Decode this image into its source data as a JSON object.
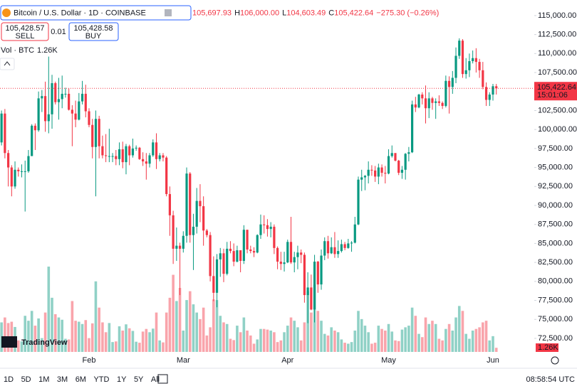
{
  "chart_data": {
    "type": "candlestick",
    "title": "Bitcoin / U.S. Dollar · 1D · COINBASE",
    "up_color": "#089981",
    "down_color": "#f23645",
    "ylim": [
      70250,
      117050
    ],
    "yticks": [
      {
        "value": 72500,
        "label": "72,500.00"
      },
      {
        "value": 75000,
        "label": "75,000.00"
      },
      {
        "value": 77500,
        "label": "77,500.00"
      },
      {
        "value": 80000,
        "label": "80,000.00"
      },
      {
        "value": 82500,
        "label": "82,500.00"
      },
      {
        "value": 85000,
        "label": "85,000.00"
      },
      {
        "value": 87500,
        "label": "87,500.00"
      },
      {
        "value": 90000,
        "label": "90,000.00"
      },
      {
        "value": 92500,
        "label": "92,500.00"
      },
      {
        "value": 95000,
        "label": "95,000.00"
      },
      {
        "value": 97500,
        "label": "97,500.00"
      },
      {
        "value": 100000,
        "label": "100,000.00"
      },
      {
        "value": 102500,
        "label": "102,500.00"
      },
      {
        "value": 105000,
        "label": "105,000.00"
      },
      {
        "value": 107500,
        "label": "107,500.00"
      },
      {
        "value": 110000,
        "label": "110,000.00"
      },
      {
        "value": 112500,
        "label": "112,500.00"
      },
      {
        "value": 115000,
        "label": "115,000.00"
      }
    ],
    "categories": [
      null,
      null,
      null,
      null,
      null,
      null,
      null,
      null,
      null,
      null,
      null,
      null,
      null,
      null,
      null,
      null,
      null,
      null,
      null,
      null,
      null,
      null,
      null,
      null,
      null,
      null,
      "Feb",
      null,
      null,
      null,
      null,
      null,
      null,
      null,
      null,
      null,
      null,
      null,
      null,
      null,
      null,
      null,
      null,
      null,
      null,
      null,
      null,
      null,
      null,
      null,
      null,
      null,
      null,
      null,
      "Mar",
      null,
      null,
      null,
      null,
      null,
      null,
      null,
      null,
      null,
      null,
      null,
      null,
      null,
      null,
      null,
      null,
      null,
      null,
      null,
      null,
      null,
      null,
      null,
      null,
      null,
      null,
      null,
      null,
      null,
      null,
      "Apr",
      null,
      null,
      null,
      null,
      null,
      null,
      null,
      null,
      null,
      null,
      null,
      null,
      null,
      null,
      null,
      null,
      null,
      null,
      null,
      null,
      null,
      null,
      null,
      null,
      null,
      null,
      null,
      null,
      null,
      "May",
      null,
      null,
      null,
      null,
      null,
      null,
      null,
      null,
      null,
      null,
      null,
      null,
      null,
      null,
      null,
      null,
      null,
      null,
      null,
      null,
      null,
      null,
      null,
      null,
      null,
      null,
      null,
      null,
      null,
      null,
      "Jun",
      null
    ],
    "open": [
      98300,
      102100,
      96900,
      95000,
      92500,
      94700,
      94500,
      94500,
      94500,
      96500,
      100500,
      99900,
      104100,
      104400,
      101100,
      102000,
      106100,
      103600,
      104000,
      104700,
      104700,
      102600,
      102100,
      101300,
      103700,
      104700,
      102400,
      100600,
      97700,
      101400,
      97800,
      96600,
      96500,
      96500,
      96500,
      96100,
      97400,
      95700,
      97800,
      96600,
      97500,
      97600,
      96100,
      95800,
      95500,
      96600,
      98300,
      96100,
      96600,
      96300,
      91500,
      88700,
      84300,
      84700,
      84300,
      86000,
      94200,
      86100,
      87200,
      90600,
      89900,
      86700,
      86100,
      80700,
      78500,
      82900,
      83700,
      81000,
      84300,
      84000,
      82600,
      84100,
      82700,
      86800,
      84200,
      84000,
      83800,
      86100,
      87500,
      87400,
      86900,
      87200,
      84400,
      82600,
      82300,
      82500,
      85200,
      82500,
      83200,
      83800,
      83500,
      78200,
      79200,
      76300,
      82600,
      79600,
      83400,
      85300,
      83700,
      84500,
      83600,
      84000,
      84900,
      84400,
      85000,
      85100,
      87500,
      93400,
      93700,
      93900,
      94700,
      94600,
      93800,
      95000,
      94300,
      94200,
      96500,
      96900,
      95900,
      94300,
      94700,
      96800,
      97000,
      103300,
      102900,
      104600,
      104100,
      102800,
      104100,
      103500,
      103700,
      103500,
      103100,
      106400,
      105600,
      106800,
      109700,
      111700,
      107300,
      107800,
      109000,
      109400,
      108900,
      107800,
      105600,
      103900,
      104600,
      105697.93
    ],
    "high": [
      102500,
      102700,
      97300,
      95300,
      95800,
      95000,
      95400,
      95900,
      97300,
      100700,
      100800,
      105000,
      105200,
      106300,
      109600,
      107200,
      106300,
      106800,
      107100,
      105500,
      105400,
      103200,
      103800,
      104800,
      106400,
      105900,
      102800,
      101400,
      102500,
      101800,
      99200,
      99400,
      100100,
      96900,
      97300,
      98300,
      98400,
      98100,
      98000,
      98800,
      97900,
      97700,
      97000,
      96900,
      96900,
      98700,
      99500,
      96900,
      96900,
      96500,
      92500,
      89300,
      87100,
      85100,
      86600,
      95000,
      94400,
      88900,
      92300,
      92800,
      91200,
      86900,
      86500,
      83300,
      83600,
      84400,
      84300,
      85200,
      85300,
      85000,
      84700,
      84100,
      87400,
      86800,
      84700,
      84500,
      86200,
      88800,
      88700,
      88200,
      87800,
      87500,
      84600,
      83900,
      83900,
      85500,
      88500,
      83900,
      84700,
      84200,
      83800,
      81200,
      80900,
      83500,
      82700,
      84200,
      85800,
      86000,
      85800,
      86500,
      85400,
      85500,
      85200,
      85600,
      85300,
      88500,
      93800,
      94700,
      94000,
      95800,
      95300,
      95200,
      95500,
      95400,
      95200,
      97400,
      97900,
      96900,
      96000,
      95200,
      96900,
      97700,
      103800,
      104300,
      104700,
      104900,
      105800,
      104900,
      104300,
      104100,
      104500,
      103700,
      107100,
      107000,
      107700,
      110800,
      112000,
      111900,
      109400,
      110000,
      110400,
      110700,
      109300,
      108900,
      106200,
      104900,
      106000,
      106000
    ],
    "low": [
      97900,
      96200,
      92500,
      91200,
      92200,
      93800,
      93700,
      89200,
      94300,
      96500,
      97300,
      99700,
      102300,
      99700,
      99500,
      100100,
      103300,
      101300,
      102800,
      104200,
      102500,
      97800,
      100300,
      101200,
      103300,
      101600,
      100300,
      96200,
      91200,
      96200,
      96200,
      95700,
      95700,
      95700,
      95300,
      95300,
      94900,
      94100,
      95300,
      96300,
      97200,
      96000,
      95200,
      93400,
      95000,
      96400,
      94800,
      95800,
      95800,
      91200,
      86000,
      82300,
      82700,
      78200,
      83800,
      85100,
      85100,
      81500,
      86300,
      87800,
      84700,
      85800,
      80000,
      77400,
      76600,
      80600,
      79900,
      80800,
      83700,
      82000,
      82500,
      81200,
      82300,
      83700,
      83700,
      83200,
      83700,
      85600,
      86300,
      85900,
      85800,
      83600,
      81600,
      81500,
      81300,
      82400,
      82300,
      81200,
      81600,
      82400,
      77200,
      74500,
      76200,
      74600,
      78500,
      78900,
      82800,
      83000,
      83600,
      83100,
      83100,
      83800,
      84100,
      84300,
      83900,
      85000,
      87400,
      91900,
      92000,
      92900,
      93900,
      93100,
      92800,
      93800,
      92900,
      94100,
      96300,
      95800,
      94000,
      93500,
      93400,
      95800,
      96900,
      102300,
      102800,
      103300,
      100800,
      101500,
      102600,
      101400,
      103100,
      102700,
      102900,
      102100,
      104700,
      106100,
      109300,
      106800,
      106700,
      106900,
      108700,
      107500,
      106800,
      105300,
      103100,
      103100,
      103800,
      104603.49
    ],
    "close": [
      102100,
      96900,
      95000,
      92500,
      94700,
      94500,
      94500,
      94500,
      96500,
      100500,
      99900,
      104100,
      104400,
      101100,
      102000,
      106100,
      103600,
      104000,
      104700,
      104700,
      102600,
      102100,
      101300,
      103700,
      104700,
      102400,
      100600,
      97700,
      101400,
      97800,
      96600,
      96500,
      96500,
      96500,
      96100,
      97400,
      95700,
      97800,
      96600,
      97500,
      97600,
      96100,
      95800,
      95500,
      96600,
      98300,
      96100,
      96600,
      96300,
      91500,
      88700,
      84300,
      84700,
      84300,
      86000,
      94200,
      86100,
      87200,
      90600,
      89900,
      86700,
      86100,
      80700,
      78500,
      82900,
      83700,
      81000,
      84300,
      84000,
      82600,
      84100,
      82700,
      86800,
      84200,
      84000,
      83800,
      86100,
      87500,
      87400,
      86900,
      87200,
      84400,
      82600,
      82300,
      82500,
      85200,
      82500,
      83200,
      83800,
      83500,
      78200,
      79200,
      76300,
      82600,
      79600,
      83400,
      85300,
      83700,
      84500,
      83600,
      84000,
      84900,
      84400,
      85000,
      85100,
      87500,
      93400,
      93700,
      93900,
      94700,
      94600,
      93800,
      95000,
      94300,
      94200,
      96500,
      96900,
      95900,
      94300,
      94700,
      96800,
      97000,
      103300,
      102900,
      104600,
      104100,
      102800,
      104100,
      103500,
      103700,
      103500,
      103100,
      106400,
      105600,
      106800,
      109700,
      111700,
      107300,
      107800,
      109000,
      109400,
      108900,
      107800,
      105600,
      103900,
      104600,
      105697.93,
      105422.64
    ],
    "volume": [
      9000,
      10500,
      8800,
      9200,
      7600,
      3500,
      3200,
      11000,
      9500,
      12500,
      8000,
      10200,
      4200,
      12000,
      26000,
      16500,
      11500,
      10500,
      9800,
      4000,
      3800,
      15500,
      9500,
      9200,
      8500,
      9700,
      4200,
      8700,
      21500,
      13500,
      9000,
      6000,
      8800,
      3000,
      3200,
      7800,
      6500,
      8400,
      7200,
      6400,
      3100,
      2800,
      6200,
      7000,
      6000,
      7100,
      12000,
      3500,
      2900,
      12000,
      16500,
      23500,
      15500,
      19500,
      6500,
      15800,
      18500,
      14500,
      12000,
      10000,
      13500,
      5000,
      7500,
      16000,
      15800,
      11000,
      9000,
      8500,
      4000,
      3600,
      8000,
      6000,
      10500,
      6500,
      5000,
      2500,
      3800,
      7000,
      7000,
      6800,
      6500,
      6000,
      3000,
      3500,
      6000,
      8000,
      10500,
      9500,
      7500,
      3500,
      9000,
      18500,
      12000,
      20500,
      12500,
      9500,
      5500,
      5000,
      7500,
      6500,
      6000,
      3800,
      2800,
      2500,
      3000,
      6500,
      12500,
      10000,
      8000,
      6000,
      2500,
      2800,
      8000,
      7000,
      6500,
      8500,
      6200,
      3500,
      3300,
      6800,
      7500,
      8000,
      13500,
      11000,
      5500,
      4500,
      10500,
      8500,
      9500,
      8500,
      4000,
      3500,
      7000,
      8500,
      6500,
      10500,
      14000,
      12500,
      5500,
      4000,
      6500,
      7000,
      7500,
      9000,
      9500,
      3500,
      4800,
      1260
    ],
    "volume_name": "Vol · BTC",
    "volume_value_label": "1.26K",
    "header_values": [
      "105,697.93",
      "H",
      "106,000.00",
      "L",
      "104,603.49",
      "C",
      "105,422.64",
      "−275.30 (−0.26%)"
    ],
    "last_price_label": "105,422.64",
    "countdown": "15:01:06"
  },
  "trade_panel": {
    "sell_price": "105,428.57",
    "sell": "SELL",
    "spread": "0.01",
    "buy_price": "105,428.58",
    "buy": "BUY"
  },
  "logo": "TradingView",
  "toolbar": {
    "ranges": [
      "1D",
      "5D",
      "1M",
      "3M",
      "6M",
      "YTD",
      "1Y",
      "5Y",
      "All"
    ],
    "clock": "08:58:54 UTC"
  }
}
